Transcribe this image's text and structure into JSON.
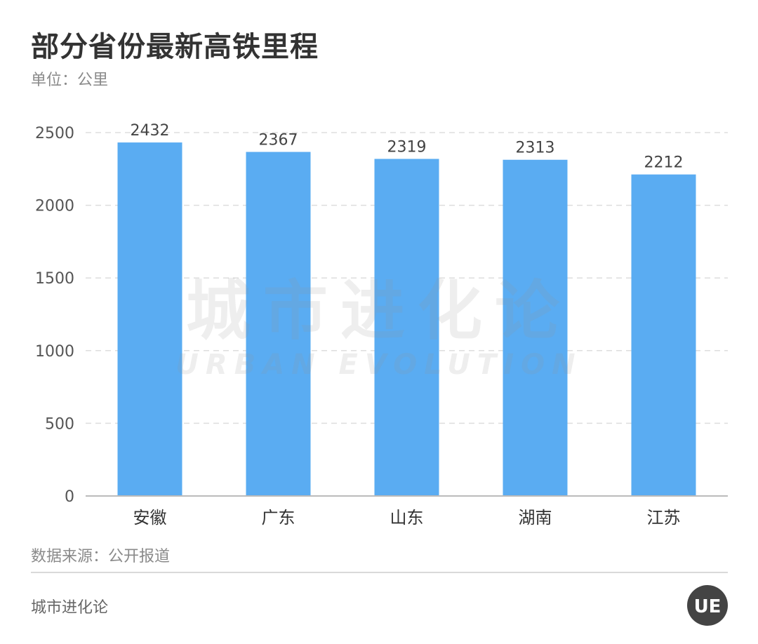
{
  "title": "部分省份最新高铁里程",
  "subtitle": "单位：公里",
  "source": "数据来源：公开报道",
  "brand": "城市进化论",
  "watermark": {
    "cn": "城市进化论",
    "en": "URBAN EVOLUTION"
  },
  "colors": {
    "bar": "#5aacf2",
    "title": "#333333",
    "muted": "#8a8a8a",
    "grid": "#dddddd",
    "axis": "#bbbbbb",
    "logo_bg": "#444444"
  },
  "logo_icon": "ue-logo-icon",
  "logo_text": "UE",
  "chart_data": {
    "type": "bar",
    "categories": [
      "安徽",
      "广东",
      "山东",
      "湖南",
      "江苏"
    ],
    "values": [
      2432,
      2367,
      2319,
      2313,
      2212
    ],
    "data_labels": [
      "2432",
      "2367",
      "2319",
      "2313",
      "2212"
    ],
    "yticks": [
      0,
      500,
      1000,
      1500,
      2000,
      2500
    ],
    "ylim": [
      0,
      2500
    ],
    "xlabel": "",
    "ylabel": "",
    "grid": true,
    "legend": "none"
  }
}
